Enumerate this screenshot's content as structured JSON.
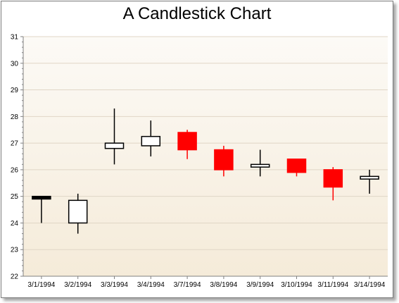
{
  "chart_data": {
    "type": "candlestick",
    "title": "A Candlestick Chart",
    "xlabel": "",
    "ylabel": "",
    "ylim": [
      22,
      31
    ],
    "yticks": [
      22,
      23,
      24,
      25,
      26,
      27,
      28,
      29,
      30,
      31
    ],
    "categories": [
      "3/1/1994",
      "3/2/1994",
      "3/3/1994",
      "3/4/1994",
      "3/7/1994",
      "3/8/1994",
      "3/9/1994",
      "3/10/1994",
      "3/11/1994",
      "3/14/1994"
    ],
    "series": [
      {
        "open": [
          24.9,
          24.0,
          26.8,
          26.9,
          27.4,
          26.75,
          26.1,
          26.4,
          26.0,
          25.65
        ],
        "high": [
          25.0,
          25.1,
          28.3,
          27.85,
          27.5,
          26.9,
          26.75,
          26.4,
          26.1,
          26.0
        ],
        "low": [
          24.0,
          23.6,
          26.2,
          26.5,
          26.4,
          25.75,
          25.75,
          25.75,
          24.85,
          25.1
        ],
        "close": [
          25.0,
          24.85,
          27.0,
          27.25,
          26.75,
          26.0,
          26.2,
          25.9,
          25.35,
          25.75
        ]
      }
    ],
    "grid": true,
    "legend": "none",
    "colors": {
      "increase": "#000000",
      "decrease": "#ff0000",
      "plot_background_top": "#fcfaf6",
      "plot_background_bottom": "#f5ebd9",
      "gridline": "#e0d6c6",
      "axis": "#808080"
    }
  }
}
